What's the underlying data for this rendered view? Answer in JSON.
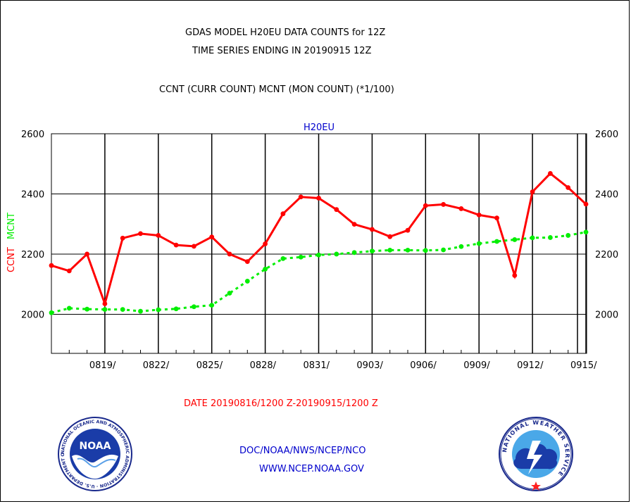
{
  "header": {
    "title_line1": "GDAS MODEL H20EU DATA COUNTS for 12Z",
    "title_line2": "TIME SERIES ENDING IN 20190915 12Z",
    "subtitle": "CCNT (CURR COUNT) MCNT (MON COUNT) (*1/100)"
  },
  "chart_data": {
    "type": "line",
    "title": "H20EU",
    "ylabel_left": [
      "CCNT",
      "MCNT"
    ],
    "xlabel": "DATE 20190816/1200 Z-20190915/1200 Z",
    "ylim": [
      1870,
      2600
    ],
    "yticks": [
      2000,
      2200,
      2400,
      2600
    ],
    "x_tick_labels": [
      "0819/",
      "0822/",
      "0825/",
      "0828/",
      "0831/",
      "0903/",
      "0906/",
      "0909/",
      "0912/",
      "0915/"
    ],
    "x_days": [
      "0816",
      "0817",
      "0818",
      "0819",
      "0820",
      "0821",
      "0822",
      "0823",
      "0824",
      "0825",
      "0826",
      "0827",
      "0828",
      "0829",
      "0830",
      "0831",
      "0901",
      "0902",
      "0903",
      "0904",
      "0905",
      "0906",
      "0907",
      "0908",
      "0909",
      "0910",
      "0911",
      "0912",
      "0913",
      "0914",
      "0915"
    ],
    "grid": true,
    "series": [
      {
        "name": "CCNT",
        "color": "#ff0000",
        "style": "solid",
        "values": [
          2162,
          2144,
          2200,
          2035,
          2253,
          2268,
          2262,
          2230,
          2226,
          2257,
          2200,
          2175,
          2234,
          2334,
          2390,
          2386,
          2348,
          2299,
          2282,
          2258,
          2279,
          2361,
          2365,
          2351,
          2330,
          2320,
          2129,
          2407,
          2468,
          2421,
          2366
        ]
      },
      {
        "name": "MCNT",
        "color": "#00ee00",
        "style": "dotted",
        "values": [
          2005,
          2020,
          2017,
          2016,
          2016,
          2010,
          2015,
          2018,
          2025,
          2030,
          2070,
          2110,
          2150,
          2185,
          2190,
          2197,
          2200,
          2205,
          2210,
          2213,
          2213,
          2212,
          2214,
          2225,
          2235,
          2242,
          2248,
          2254,
          2255,
          2262,
          2273
        ]
      }
    ]
  },
  "footer": {
    "agency_line": "DOC/NOAA/NWS/NCEP/NCO",
    "website": "WWW.NCEP.NOAA.GOV",
    "noaa_logo_text": "NOAA",
    "noaa_ring_text": "NATIONAL OCEANIC AND ATMOSPHERIC ADMINISTRATION · U.S. DEPARTMENT OF COMMERCE",
    "nws_ring_text": "NATIONAL WEATHER SERVICE"
  },
  "colors": {
    "red": "#ff0000",
    "green": "#00ee00",
    "blue": "#0000cc"
  }
}
